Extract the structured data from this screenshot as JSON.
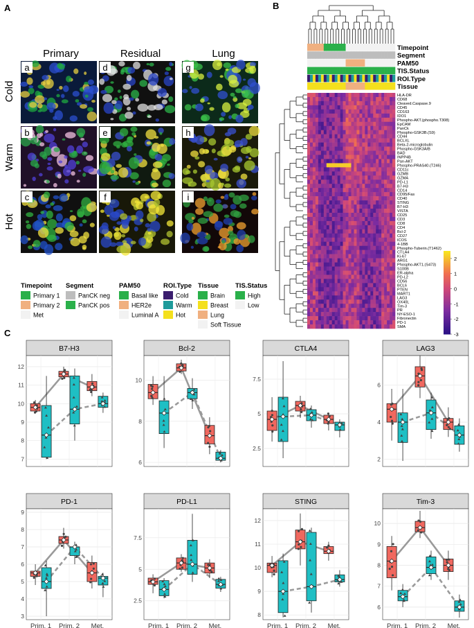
{
  "panels": {
    "A": "A",
    "B": "B",
    "C": "C"
  },
  "panelA": {
    "columns": [
      "Primary",
      "Residual",
      "Lung"
    ],
    "rows": [
      "Cold",
      "Warm",
      "Hot"
    ],
    "tiles": [
      "a",
      "d",
      "g",
      "b",
      "e",
      "h",
      "c",
      "f",
      "i"
    ]
  },
  "heatmap": {
    "track_labels": [
      "Timepoint",
      "Segment",
      "PAM50",
      "TIS.Status",
      "ROI.Type",
      "Tissue"
    ],
    "markers": [
      "HLA-DR",
      "CD68",
      "Cleaved.Caspase.9",
      "CD45",
      "CD163",
      "IDO1",
      "Phospho-AKT.(phospho.T308)",
      "EpCAM",
      "PanCk",
      "Phospho-GSK3B.(S9)",
      "CD44",
      "BCLXL",
      "Beta-2-microglobulin",
      "Phospho-GSK3A/B",
      "BAD",
      "INPP4B",
      "Pan-AKT",
      "Phospho-PRAS40.(T246)",
      "CD11c",
      "GZMB",
      "GZMA",
      "PD-L1",
      "B7-H3",
      "CD14",
      "CD95/Fas",
      "CD40",
      "STING",
      "B7-H3",
      "VISTA",
      "CD25",
      "CD3",
      "CD8",
      "CD4",
      "Bcl-2",
      "CD27",
      "ICOS",
      "4-1BB",
      "Phospho-Tuberin.(T1462)",
      "CTLA4",
      "Ki-67",
      "ARG1",
      "Phospho-AKT1.(S473)",
      "S100B",
      "ER-alpha",
      "PD-L2",
      "CD56",
      "BCL6",
      "PTEN",
      "MART1",
      "LAG3",
      "OX40L",
      "Tim-3",
      "PR",
      "NY-ESO-1",
      "Fibronectin",
      "PD-1",
      "SMA"
    ],
    "colorbar_ticks": [
      "2",
      "1",
      "0",
      "-1",
      "-2",
      "-3"
    ],
    "colors": {
      "high": "#f8e51f",
      "mid": "#e8606a",
      "low": "#2c1186"
    }
  },
  "legend": {
    "groups": [
      {
        "title": "Timepoint",
        "items": [
          {
            "label": "Primary 1",
            "color": "#2ab04a"
          },
          {
            "label": "Primary 2",
            "color": "#f0b080"
          },
          {
            "label": "Met",
            "color": "#f2f2f2"
          }
        ]
      },
      {
        "title": "Segment",
        "items": [
          {
            "label": "PanCK neg",
            "color": "#bdbdbd"
          },
          {
            "label": "PanCK pos",
            "color": "#2ab04a"
          }
        ]
      },
      {
        "title": "PAM50",
        "items": [
          {
            "label": "Basal like",
            "color": "#2ab04a"
          },
          {
            "label": "HER2e",
            "color": "#f0b080"
          },
          {
            "label": "Luminal A",
            "color": "#f2f2f2"
          }
        ]
      },
      {
        "title": "ROI.Type",
        "items": [
          {
            "label": "Cold",
            "color": "#3a1d6e"
          },
          {
            "label": "Warm",
            "color": "#1e9b9b"
          },
          {
            "label": "Hot",
            "color": "#f4e01d"
          }
        ]
      },
      {
        "title": "Tissue",
        "items": [
          {
            "label": "Brain",
            "color": "#2ab04a"
          },
          {
            "label": "Breast",
            "color": "#f4e01d"
          },
          {
            "label": "Lung",
            "color": "#f0b080"
          },
          {
            "label": "Soft Tissue",
            "color": "#f2f2f2"
          }
        ]
      },
      {
        "title": "TIS.Status",
        "items": [
          {
            "label": "High",
            "color": "#2ab04a"
          },
          {
            "label": "Low",
            "color": "#f2f2f2"
          }
        ]
      }
    ]
  },
  "chart_data": {
    "type": "box",
    "categories": [
      "Prim. 1",
      "Prim. 2",
      "Met."
    ],
    "series_colors": [
      "#f0685f",
      "#1fbfc4"
    ],
    "panels": [
      {
        "title": "B7-H3",
        "ylim": [
          6.6,
          12.6
        ],
        "ticks": [
          7,
          8,
          9,
          10,
          11,
          12
        ],
        "boxes": [
          [
            9.8,
            9.5,
            9.6,
            10.0,
            10.2
          ],
          [
            8.3,
            7.0,
            7.1,
            9.9,
            11.5
          ],
          [
            11.6,
            11.4,
            11.45,
            11.75,
            12.0
          ],
          [
            9.7,
            8.0,
            8.9,
            11.5,
            11.9
          ],
          [
            10.9,
            10.4,
            10.7,
            11.2,
            11.6
          ],
          [
            10.0,
            9.5,
            9.8,
            10.4,
            10.6
          ]
        ]
      },
      {
        "title": "Bcl-2",
        "ylim": [
          5.8,
          11.2
        ],
        "ticks": [
          6,
          8,
          10
        ],
        "boxes": [
          [
            9.4,
            8.8,
            9.1,
            9.8,
            10.2
          ],
          [
            8.4,
            6.7,
            7.4,
            9.0,
            10.2
          ],
          [
            10.6,
            10.3,
            10.45,
            10.8,
            11.0
          ],
          [
            9.4,
            8.6,
            9.1,
            9.6,
            10.1
          ],
          [
            7.3,
            6.4,
            6.9,
            7.8,
            8.2
          ],
          [
            6.2,
            6.0,
            6.1,
            6.5,
            6.6
          ]
        ]
      },
      {
        "title": "CTLA4",
        "ylim": [
          1.2,
          9.2
        ],
        "ticks": [
          2.5,
          5.0,
          7.5
        ],
        "boxes": [
          [
            4.6,
            3.0,
            3.8,
            5.2,
            6.2
          ],
          [
            4.8,
            1.8,
            3.0,
            6.2,
            8.8
          ],
          [
            5.6,
            4.7,
            5.2,
            5.9,
            6.3
          ],
          [
            4.9,
            4.0,
            4.5,
            5.3,
            5.6
          ],
          [
            4.6,
            3.8,
            4.3,
            4.9,
            5.0
          ],
          [
            4.2,
            3.3,
            3.8,
            4.4,
            4.6
          ]
        ]
      },
      {
        "title": "LAG3",
        "ylim": [
          1.6,
          7.6
        ],
        "ticks": [
          2,
          4,
          6
        ],
        "boxes": [
          [
            4.7,
            3.0,
            4.0,
            5.0,
            5.8
          ],
          [
            4.0,
            1.9,
            2.9,
            4.5,
            5.8
          ],
          [
            6.5,
            5.3,
            5.9,
            7.0,
            7.6
          ],
          [
            4.5,
            3.1,
            3.6,
            5.2,
            5.6
          ],
          [
            4.0,
            3.2,
            3.6,
            4.2,
            4.8
          ],
          [
            3.3,
            2.4,
            2.8,
            3.8,
            4.2
          ]
        ]
      },
      {
        "title": "PD-1",
        "ylim": [
          2.8,
          9.2
        ],
        "ticks": [
          3,
          4,
          5,
          6,
          7,
          8,
          9
        ],
        "boxes": [
          [
            5.5,
            4.8,
            5.3,
            5.6,
            6.0
          ],
          [
            5.0,
            3.0,
            4.6,
            5.8,
            6.2
          ],
          [
            7.4,
            6.9,
            7.2,
            7.6,
            8.1
          ],
          [
            7.0,
            6.0,
            6.5,
            7.0,
            7.3
          ],
          [
            5.5,
            4.6,
            5.0,
            6.1,
            6.5
          ],
          [
            5.2,
            4.1,
            4.8,
            5.3,
            5.5
          ]
        ]
      },
      {
        "title": "PD-L1",
        "ylim": [
          1.0,
          9.8
        ],
        "ticks": [
          2.5,
          5.0,
          7.5
        ],
        "boxes": [
          [
            4.0,
            3.1,
            3.8,
            4.3,
            4.6
          ],
          [
            3.4,
            2.7,
            2.9,
            4.1,
            4.3
          ],
          [
            5.5,
            4.8,
            5.0,
            5.9,
            6.2
          ],
          [
            5.4,
            4.0,
            4.6,
            7.3,
            9.4
          ],
          [
            5.1,
            4.3,
            4.7,
            5.5,
            5.8
          ],
          [
            3.8,
            3.2,
            3.5,
            4.2,
            4.4
          ]
        ]
      },
      {
        "title": "STING",
        "ylim": [
          7.8,
          12.5
        ],
        "ticks": [
          8,
          9,
          10,
          11,
          12
        ],
        "boxes": [
          [
            10.1,
            9.6,
            9.8,
            10.2,
            10.5
          ],
          [
            9.0,
            7.9,
            8.1,
            10.3,
            10.6
          ],
          [
            11.1,
            10.1,
            10.8,
            11.6,
            12.3
          ],
          [
            9.2,
            8.1,
            8.6,
            11.5,
            11.7
          ],
          [
            10.7,
            10.3,
            10.6,
            10.9,
            11.1
          ],
          [
            9.5,
            9.2,
            9.4,
            9.7,
            9.9
          ]
        ]
      },
      {
        "title": "Tim-3",
        "ylim": [
          5.4,
          10.7
        ],
        "ticks": [
          6,
          7,
          8,
          9,
          10
        ],
        "boxes": [
          [
            8.2,
            6.8,
            7.4,
            8.9,
            9.4
          ],
          [
            6.5,
            6.0,
            6.3,
            6.8,
            7.1
          ],
          [
            9.8,
            9.3,
            9.6,
            10.1,
            10.6
          ],
          [
            7.9,
            7.3,
            7.6,
            8.4,
            8.7
          ],
          [
            8.0,
            7.3,
            7.7,
            8.3,
            8.7
          ],
          [
            6.0,
            5.5,
            5.8,
            6.3,
            6.6
          ]
        ]
      }
    ]
  }
}
